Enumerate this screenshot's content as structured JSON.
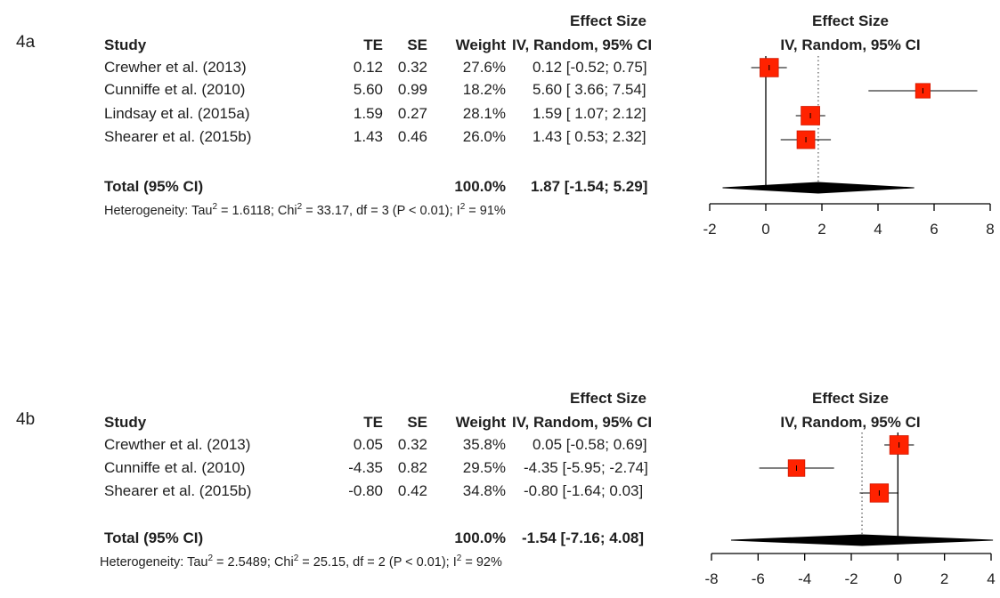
{
  "colors": {
    "box": "#ff2200",
    "line": "#000000",
    "text": "#1f1f1f"
  },
  "chart_data": [
    {
      "type": "forest",
      "panel_label": "4a",
      "header": {
        "effect_top": "Effect Size",
        "study": "Study",
        "te": "TE",
        "se": "SE",
        "weight": "Weight",
        "effect_sub": "IV, Random, 95% CI",
        "plot_top": "Effect Size",
        "plot_sub": "IV, Random, 95% CI"
      },
      "studies": [
        {
          "name": "Crewher et al. (2013)",
          "te": "0.12",
          "se": "0.32",
          "weight": "27.6%",
          "ci_text": "0.12 [-0.52; 0.75]",
          "est": 0.12,
          "lo": -0.52,
          "hi": 0.75,
          "w": 27.6
        },
        {
          "name": "Cunniffe et al. (2010)",
          "te": "5.60",
          "se": "0.99",
          "weight": "18.2%",
          "ci_text": "5.60 [ 3.66; 7.54]",
          "est": 5.6,
          "lo": 3.66,
          "hi": 7.54,
          "w": 18.2
        },
        {
          "name": "Lindsay et al. (2015a)",
          "te": "1.59",
          "se": "0.27",
          "weight": "28.1%",
          "ci_text": "1.59 [ 1.07; 2.12]",
          "est": 1.59,
          "lo": 1.07,
          "hi": 2.12,
          "w": 28.1
        },
        {
          "name": "Shearer et al. (2015b)",
          "te": "1.43",
          "se": "0.46",
          "weight": "26.0%",
          "ci_text": "1.43 [ 0.53; 2.32]",
          "est": 1.43,
          "lo": 0.53,
          "hi": 2.32,
          "w": 26.0
        }
      ],
      "total": {
        "label": "Total (95% CI)",
        "weight": "100.0%",
        "ci_text": "1.87 [-1.54; 5.29]",
        "est": 1.87,
        "lo": -1.54,
        "hi": 5.29
      },
      "heterogeneity": {
        "part1": "Heterogeneity: Tau",
        "part2": " = 1.6118; Chi",
        "part3": " = 33.17, df = 3 (P < 0.01); I",
        "part4": " = 91%",
        "sup": "2"
      },
      "x_ticks": [
        "-2",
        "0",
        "2",
        "4",
        "6",
        "8"
      ],
      "x_tick_values": [
        -2,
        0,
        2,
        4,
        6,
        8
      ],
      "xlim": [
        -2,
        8
      ],
      "null_line": 0,
      "pooled_line": 1.87
    },
    {
      "type": "forest",
      "panel_label": "4b",
      "header": {
        "effect_top": "Effect Size",
        "study": "Study",
        "te": "TE",
        "se": "SE",
        "weight": "Weight",
        "effect_sub": "IV, Random, 95% CI",
        "plot_top": "Effect Size",
        "plot_sub": "IV, Random, 95% CI"
      },
      "studies": [
        {
          "name": "Crewther et al. (2013)",
          "te": "0.05",
          "se": "0.32",
          "weight": "35.8%",
          "ci_text": "0.05 [-0.58; 0.69]",
          "est": 0.05,
          "lo": -0.58,
          "hi": 0.69,
          "w": 35.8
        },
        {
          "name": "Cunniffe et al. (2010)",
          "te": "-4.35",
          "se": "0.82",
          "weight": "29.5%",
          "ci_text": "-4.35 [-5.95; -2.74]",
          "est": -4.35,
          "lo": -5.95,
          "hi": -2.74,
          "w": 29.5
        },
        {
          "name": "Shearer et al. (2015b)",
          "te": "-0.80",
          "se": "0.42",
          "weight": "34.8%",
          "ci_text": "-0.80 [-1.64; 0.03]",
          "est": -0.8,
          "lo": -1.64,
          "hi": 0.03,
          "w": 34.8
        }
      ],
      "total": {
        "label": "Total (95% CI)",
        "weight": "100.0%",
        "ci_text": "-1.54 [-7.16; 4.08]",
        "est": -1.54,
        "lo": -7.16,
        "hi": 4.08
      },
      "heterogeneity": {
        "part1": "Heterogeneity: Tau",
        "part2": " = 2.5489; Chi",
        "part3": " = 25.15, df = 2 (P < 0.01); I",
        "part4": " = 92%",
        "sup": "2"
      },
      "x_ticks": [
        "-8",
        "-6",
        "-4",
        "-2",
        "0",
        "2",
        "4"
      ],
      "x_tick_values": [
        -8,
        -6,
        -4,
        -2,
        0,
        2,
        4
      ],
      "xlim": [
        -8,
        4
      ],
      "null_line": 0,
      "pooled_line": -1.54
    }
  ]
}
